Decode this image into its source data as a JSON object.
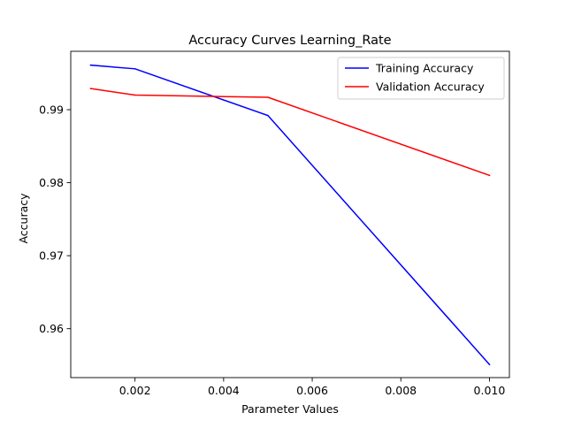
{
  "chart_data": {
    "type": "line",
    "title": "Accuracy Curves Learning_Rate",
    "xlabel": "Parameter Values",
    "ylabel": "Accuracy",
    "xlim": [
      0.00055,
      0.01045
    ],
    "ylim": [
      0.9533,
      0.998
    ],
    "xticks": [
      0.002,
      0.004,
      0.006,
      0.008,
      0.01
    ],
    "xtick_labels": [
      "0.002",
      "0.004",
      "0.006",
      "0.008",
      "0.010"
    ],
    "yticks": [
      0.96,
      0.97,
      0.98,
      0.99
    ],
    "ytick_labels": [
      "0.96",
      "0.97",
      "0.98",
      "0.99"
    ],
    "x": [
      0.001,
      0.002,
      0.005,
      0.01
    ],
    "series": [
      {
        "name": "Training Accuracy",
        "color": "#0000ff",
        "values": [
          0.9961,
          0.9956,
          0.9892,
          0.9551
        ]
      },
      {
        "name": "Validation Accuracy",
        "color": "#ff0000",
        "values": [
          0.9929,
          0.992,
          0.9917,
          0.981
        ]
      }
    ],
    "grid": false,
    "legend_position": "top-right"
  }
}
